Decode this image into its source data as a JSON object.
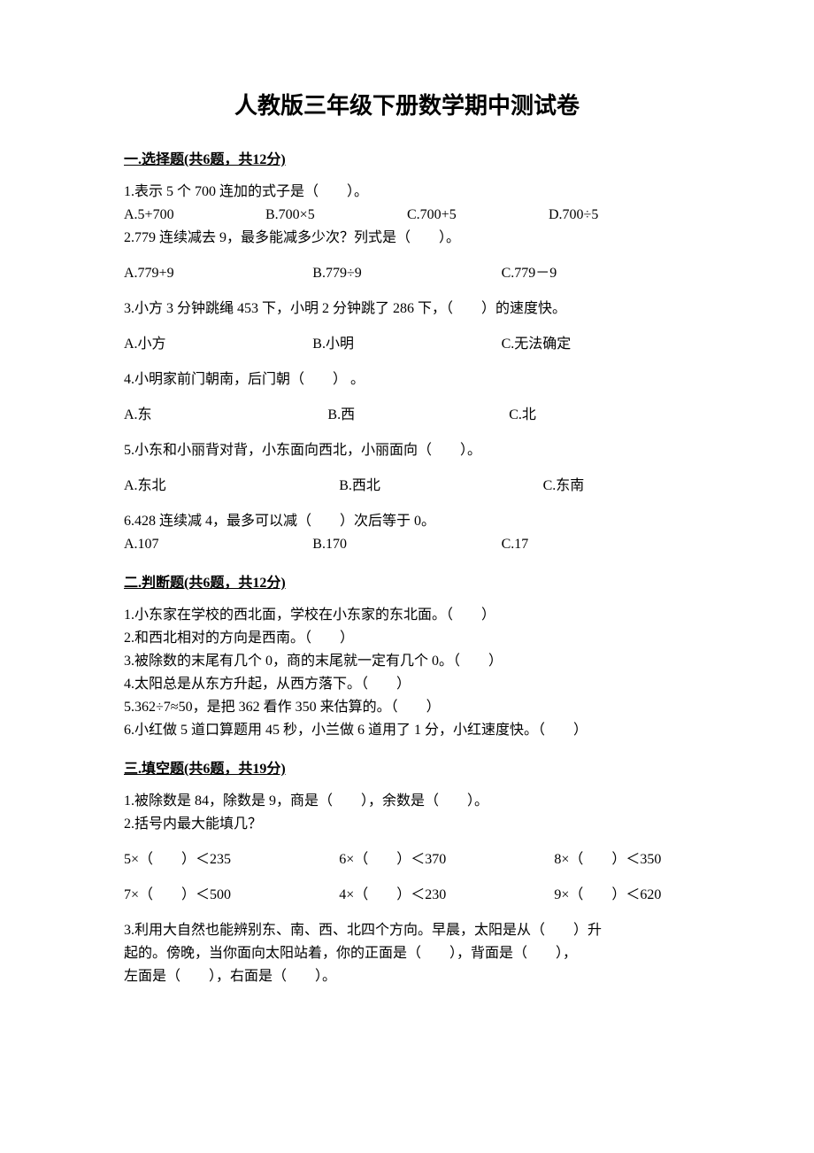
{
  "title": "人教版三年级下册数学期中测试卷",
  "section1": {
    "header": "一.选择题(共6题，共12分)",
    "q1": {
      "text": "1.表示 5 个 700 连加的式子是（　　）。",
      "a": "A.5+700",
      "b": "B.700×5",
      "c": "C.700+5",
      "d": "D.700÷5"
    },
    "q2": {
      "text": "2.779 连续减去 9，最多能减多少次？列式是（　　）。",
      "a": "A.779+9",
      "b": "B.779÷9",
      "c": "C.779－9"
    },
    "q3": {
      "text": "3.小方 3 分钟跳绳 453 下，小明 2 分钟跳了 286 下，（　　）的速度快。",
      "a": "A.小方",
      "b": "B.小明",
      "c": "C.无法确定"
    },
    "q4": {
      "text": "4.小明家前门朝南，后门朝（　　） 。",
      "a": "A.东",
      "b": "B.西",
      "c": "C.北"
    },
    "q5": {
      "text": "5.小东和小丽背对背，小东面向西北，小丽面向（　　）。",
      "a": "A.东北",
      "b": "B.西北",
      "c": "C.东南"
    },
    "q6": {
      "text": "6.428 连续减 4，最多可以减（　　）次后等于 0。",
      "a": "A.107",
      "b": "B.170",
      "c": "C.17"
    }
  },
  "section2": {
    "header": "二.判断题(共6题，共12分)",
    "q1": "1.小东家在学校的西北面，学校在小东家的东北面。（　　）",
    "q2": "2.和西北相对的方向是西南。（　　）",
    "q3": "3.被除数的末尾有几个 0，商的末尾就一定有几个 0。（　　）",
    "q4": "4.太阳总是从东方升起，从西方落下。（　　）",
    "q5": "5.362÷7≈50，是把 362 看作 350 来估算的。（　　）",
    "q6": "6.小红做 5 道口算题用 45 秒，小兰做 6 道用了 1 分，小红速度快。（　　）"
  },
  "section3": {
    "header": "三.填空题(共6题，共19分)",
    "q1": "1.被除数是 84，除数是 9，商是（　　），余数是（　　）。",
    "q2": "2.括号内最大能填几？",
    "row1": {
      "a": "5×（　　）＜235",
      "b": "6×（　　）＜370",
      "c": "8×（　　）＜350"
    },
    "row2": {
      "a": "7×（　　）＜500",
      "b": "4×（　　）＜230",
      "c": "9×（　　）＜620"
    },
    "q3a": "3.利用大自然也能辨别东、南、西、北四个方向。早晨，太阳是从（　　）升",
    "q3b": "起的。傍晚，当你面向太阳站着，你的正面是（　　），背面是（　　），",
    "q3c": "左面是（　　），右面是（　　）。"
  }
}
